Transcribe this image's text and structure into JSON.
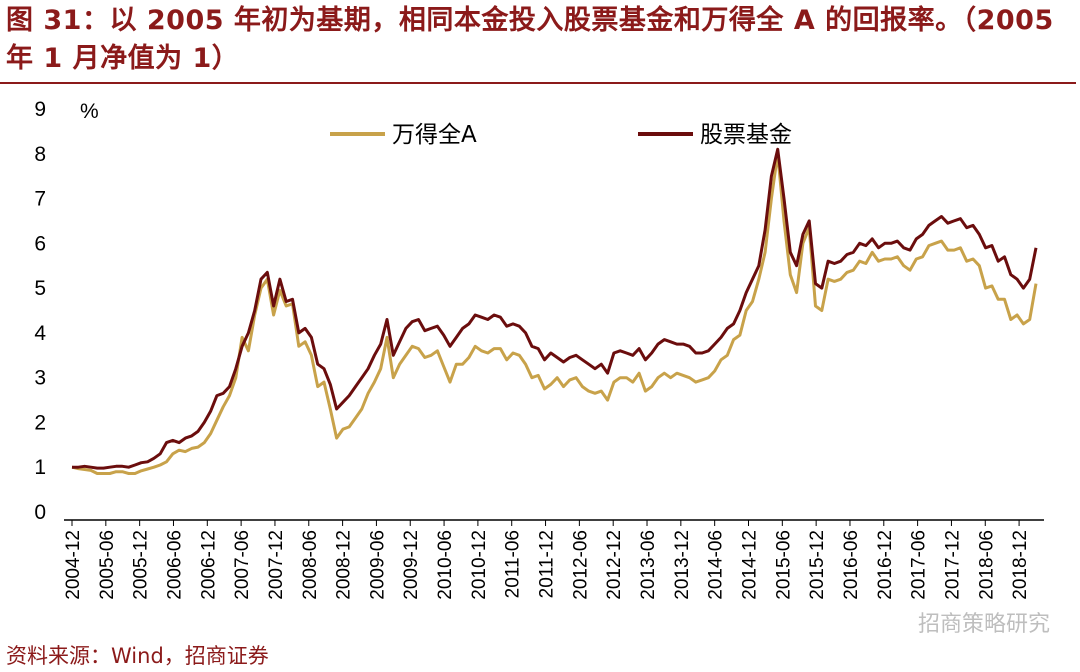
{
  "figure": {
    "title": "图 31：以 2005 年初为基期，相同本金投入股票基金和万得全 A 的回报率。（2005 年 1 月净值为 1）",
    "source": "资料来源：Wind，招商证券",
    "watermark": "招商策略研究"
  },
  "colors": {
    "title": "#8B1A1A",
    "wind_a": "#C8A24A",
    "stock_fund": "#6B0D0D",
    "axis": "#000000"
  },
  "chart_data": {
    "type": "line",
    "title": "",
    "ylabel_unit": "%",
    "ylim": [
      0,
      9
    ],
    "yticks": [
      0,
      1,
      2,
      3,
      4,
      5,
      6,
      7,
      8,
      9
    ],
    "legend_position": "top",
    "x_tick_labels": [
      "2004-12",
      "2005-06",
      "2005-12",
      "2006-06",
      "2006-12",
      "2007-06",
      "2007-12",
      "2008-06",
      "2008-12",
      "2009-06",
      "2009-12",
      "2010-06",
      "2010-12",
      "2011-06",
      "2011-12",
      "2012-06",
      "2012-12",
      "2013-06",
      "2013-12",
      "2014-06",
      "2014-12",
      "2015-06",
      "2015-12",
      "2016-06",
      "2016-12",
      "2017-06",
      "2017-12",
      "2018-06",
      "2018-12"
    ],
    "x_start": "2004-12",
    "x_end": "2019-03",
    "series": [
      {
        "name": "万得全A",
        "color": "#C8A24A",
        "values": [
          1.0,
          0.97,
          0.95,
          0.93,
          0.86,
          0.86,
          0.86,
          0.9,
          0.9,
          0.86,
          0.86,
          0.92,
          0.96,
          1.0,
          1.05,
          1.12,
          1.3,
          1.38,
          1.35,
          1.42,
          1.45,
          1.55,
          1.75,
          2.05,
          2.35,
          2.6,
          3.0,
          3.9,
          3.6,
          4.4,
          5.0,
          5.2,
          4.4,
          4.95,
          4.6,
          4.65,
          3.7,
          3.8,
          3.5,
          2.8,
          2.9,
          2.3,
          1.65,
          1.85,
          1.9,
          2.1,
          2.3,
          2.65,
          2.9,
          3.2,
          3.9,
          3.0,
          3.3,
          3.5,
          3.7,
          3.65,
          3.45,
          3.5,
          3.6,
          3.25,
          2.9,
          3.3,
          3.3,
          3.45,
          3.7,
          3.6,
          3.55,
          3.65,
          3.65,
          3.4,
          3.55,
          3.5,
          3.3,
          3.0,
          3.05,
          2.75,
          2.85,
          3.0,
          2.8,
          2.95,
          3.0,
          2.8,
          2.7,
          2.65,
          2.7,
          2.5,
          2.9,
          3.0,
          3.0,
          2.9,
          3.1,
          2.7,
          2.8,
          3.0,
          3.1,
          3.0,
          3.1,
          3.05,
          3.0,
          2.9,
          2.95,
          3.0,
          3.15,
          3.4,
          3.5,
          3.85,
          3.95,
          4.5,
          4.7,
          5.2,
          5.8,
          7.0,
          8.0,
          6.5,
          5.3,
          4.9,
          6.0,
          6.35,
          4.6,
          4.5,
          5.2,
          5.15,
          5.2,
          5.35,
          5.4,
          5.6,
          5.55,
          5.8,
          5.6,
          5.65,
          5.65,
          5.7,
          5.5,
          5.4,
          5.65,
          5.7,
          5.95,
          6.0,
          6.05,
          5.85,
          5.85,
          5.9,
          5.6,
          5.65,
          5.5,
          5.0,
          5.05,
          4.75,
          4.75,
          4.3,
          4.4,
          4.2,
          4.3,
          5.1
        ]
      },
      {
        "name": "股票基金",
        "color": "#6B0D0D",
        "values": [
          1.0,
          1.0,
          1.02,
          1.0,
          0.98,
          0.98,
          1.0,
          1.02,
          1.02,
          1.0,
          1.05,
          1.1,
          1.12,
          1.2,
          1.3,
          1.55,
          1.6,
          1.55,
          1.65,
          1.7,
          1.8,
          2.0,
          2.25,
          2.6,
          2.65,
          2.8,
          3.2,
          3.7,
          4.0,
          4.5,
          5.2,
          5.35,
          4.6,
          5.2,
          4.7,
          4.75,
          4.0,
          4.1,
          3.9,
          3.3,
          3.2,
          2.85,
          2.3,
          2.45,
          2.6,
          2.8,
          3.0,
          3.2,
          3.5,
          3.75,
          4.3,
          3.5,
          3.8,
          4.1,
          4.25,
          4.3,
          4.05,
          4.1,
          4.15,
          3.95,
          3.7,
          3.9,
          4.1,
          4.2,
          4.4,
          4.35,
          4.3,
          4.4,
          4.35,
          4.15,
          4.2,
          4.15,
          4.0,
          3.7,
          3.65,
          3.4,
          3.55,
          3.45,
          3.35,
          3.45,
          3.5,
          3.4,
          3.3,
          3.2,
          3.3,
          3.1,
          3.55,
          3.6,
          3.55,
          3.5,
          3.65,
          3.4,
          3.55,
          3.75,
          3.85,
          3.8,
          3.75,
          3.75,
          3.7,
          3.55,
          3.55,
          3.6,
          3.75,
          3.9,
          4.1,
          4.2,
          4.5,
          4.9,
          5.2,
          5.5,
          6.3,
          7.5,
          8.1,
          7.0,
          5.8,
          5.5,
          6.2,
          6.5,
          5.1,
          5.0,
          5.6,
          5.55,
          5.6,
          5.75,
          5.8,
          6.0,
          5.95,
          6.1,
          5.9,
          6.0,
          6.0,
          6.05,
          5.9,
          5.85,
          6.1,
          6.2,
          6.4,
          6.5,
          6.6,
          6.45,
          6.5,
          6.55,
          6.35,
          6.4,
          6.2,
          5.9,
          5.95,
          5.6,
          5.7,
          5.3,
          5.2,
          5.0,
          5.2,
          5.9
        ]
      }
    ]
  }
}
